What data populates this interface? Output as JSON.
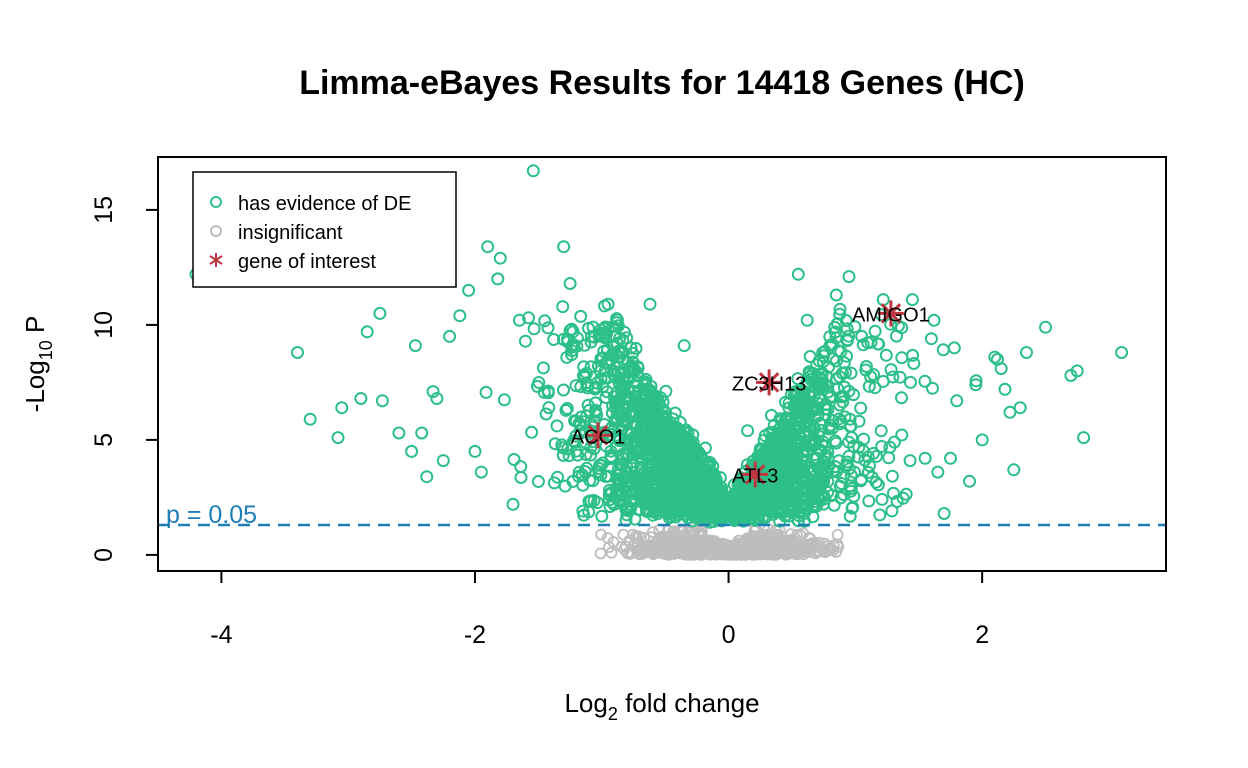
{
  "chart_data": {
    "type": "scatter",
    "title": "Limma-eBayes Results for 14418 Genes (HC)",
    "xlabel_main": "Log",
    "xlabel_sub": "2",
    "xlabel_rest": " fold change",
    "ylabel_main": "-Log",
    "ylabel_sub": "10",
    "ylabel_rest": " P",
    "xlim": [
      -4.5,
      3.45
    ],
    "ylim": [
      -0.7,
      17.3
    ],
    "x_ticks": [
      -4,
      -2,
      0,
      2
    ],
    "y_ticks": [
      0,
      5,
      10,
      15
    ],
    "threshold": {
      "label": "p = 0.05",
      "value": 1.3
    },
    "legend": {
      "position": "top-left",
      "entries": [
        {
          "label": "has evidence of DE",
          "symbol": "circle",
          "color": "#2dbf8a"
        },
        {
          "label": "insignificant",
          "symbol": "circle",
          "color": "#bdbdbd"
        },
        {
          "label": "gene of interest",
          "symbol": "asterisk",
          "color": "#c0363f"
        }
      ]
    },
    "genes_of_interest": [
      {
        "name": "AMIGO1",
        "x": 1.28,
        "y": 10.5
      },
      {
        "name": "ZC3H13",
        "x": 0.32,
        "y": 7.5
      },
      {
        "name": "ACO1",
        "x": -1.03,
        "y": 5.2
      },
      {
        "name": "ATL3",
        "x": 0.21,
        "y": 3.5
      }
    ],
    "outliers_de": [
      [
        -1.54,
        16.7
      ],
      [
        -4.2,
        12.2
      ],
      [
        -3.4,
        8.8
      ],
      [
        -3.3,
        5.9
      ],
      [
        -3.05,
        6.4
      ],
      [
        -3.08,
        5.1
      ],
      [
        -2.9,
        6.8
      ],
      [
        -2.85,
        9.7
      ],
      [
        -2.75,
        10.5
      ],
      [
        -2.73,
        6.7
      ],
      [
        -2.6,
        5.3
      ],
      [
        -2.5,
        4.5
      ],
      [
        -2.47,
        9.1
      ],
      [
        -2.42,
        5.3
      ],
      [
        -2.38,
        3.4
      ],
      [
        -2.2,
        9.5
      ],
      [
        -2.05,
        11.5
      ],
      [
        -1.9,
        13.4
      ],
      [
        -1.8,
        12.9
      ],
      [
        -1.82,
        12.0
      ],
      [
        -1.3,
        13.4
      ],
      [
        -1.25,
        11.8
      ],
      [
        -0.95,
        10.9
      ],
      [
        -0.88,
        10.1
      ],
      [
        -0.62,
        10.9
      ],
      [
        -1.65,
        10.2
      ],
      [
        -2.12,
        10.4
      ],
      [
        -2.3,
        6.8
      ],
      [
        -2.33,
        7.1
      ],
      [
        -2.25,
        4.1
      ],
      [
        -2.0,
        4.5
      ],
      [
        -1.95,
        3.6
      ],
      [
        -1.7,
        2.2
      ],
      [
        0.55,
        12.2
      ],
      [
        0.95,
        12.1
      ],
      [
        0.85,
        11.3
      ],
      [
        1.22,
        11.1
      ],
      [
        1.45,
        11.1
      ],
      [
        1.6,
        9.4
      ],
      [
        1.62,
        10.2
      ],
      [
        1.78,
        9.0
      ],
      [
        1.8,
        6.7
      ],
      [
        1.9,
        3.2
      ],
      [
        2.0,
        5.0
      ],
      [
        2.1,
        8.6
      ],
      [
        2.12,
        8.5
      ],
      [
        2.15,
        8.1
      ],
      [
        2.18,
        7.2
      ],
      [
        2.22,
        6.2
      ],
      [
        2.3,
        6.4
      ],
      [
        2.35,
        8.8
      ],
      [
        2.5,
        9.9
      ],
      [
        2.7,
        7.8
      ],
      [
        2.75,
        8.0
      ],
      [
        2.8,
        5.1
      ],
      [
        3.1,
        8.8
      ],
      [
        1.55,
        4.2
      ],
      [
        1.65,
        3.6
      ],
      [
        1.7,
        1.8
      ],
      [
        1.95,
        7.4
      ],
      [
        2.25,
        3.7
      ],
      [
        1.75,
        4.2
      ],
      [
        0.62,
        10.2
      ],
      [
        1.05,
        9.5
      ],
      [
        0.15,
        5.4
      ],
      [
        -0.35,
        9.1
      ]
    ]
  }
}
